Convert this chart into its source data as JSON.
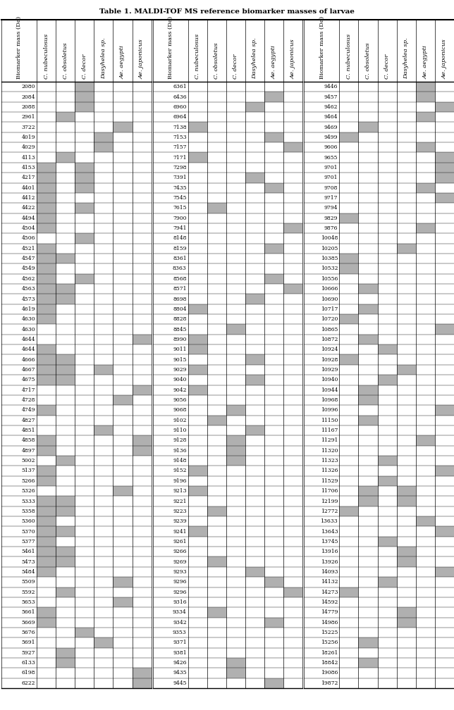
{
  "title": "Table 1. MALDI-TOF MS reference biomarker masses of larvae",
  "columns": [
    "Biomarker mass (Da)",
    "C. nubeculosus",
    "C. obsoletus",
    "C. decor",
    "Dasyhelea sp.",
    "Ae. aegypti",
    "Ae. japonicus"
  ],
  "col1_rows": [
    [
      2080,
      [
        0,
        0,
        1,
        0,
        0,
        0
      ]
    ],
    [
      2084,
      [
        0,
        0,
        1,
        0,
        0,
        0
      ]
    ],
    [
      2088,
      [
        0,
        0,
        1,
        0,
        0,
        0
      ]
    ],
    [
      2961,
      [
        0,
        1,
        0,
        0,
        0,
        0
      ]
    ],
    [
      3722,
      [
        0,
        0,
        0,
        0,
        1,
        0
      ]
    ],
    [
      4019,
      [
        0,
        0,
        0,
        1,
        0,
        0
      ]
    ],
    [
      4029,
      [
        0,
        0,
        0,
        1,
        0,
        0
      ]
    ],
    [
      4113,
      [
        0,
        1,
        0,
        0,
        0,
        0
      ]
    ],
    [
      4153,
      [
        1,
        0,
        1,
        0,
        0,
        0
      ]
    ],
    [
      4217,
      [
        1,
        0,
        1,
        0,
        0,
        0
      ]
    ],
    [
      4401,
      [
        1,
        0,
        1,
        0,
        0,
        0
      ]
    ],
    [
      4412,
      [
        1,
        0,
        0,
        0,
        0,
        0
      ]
    ],
    [
      4422,
      [
        1,
        0,
        1,
        0,
        0,
        0
      ]
    ],
    [
      4494,
      [
        1,
        0,
        0,
        0,
        0,
        0
      ]
    ],
    [
      4504,
      [
        1,
        0,
        0,
        0,
        0,
        0
      ]
    ],
    [
      4506,
      [
        0,
        0,
        1,
        0,
        0,
        0
      ]
    ],
    [
      4521,
      [
        1,
        0,
        0,
        0,
        0,
        0
      ]
    ],
    [
      4547,
      [
        1,
        1,
        0,
        0,
        0,
        0
      ]
    ],
    [
      4549,
      [
        1,
        0,
        0,
        0,
        0,
        0
      ]
    ],
    [
      4562,
      [
        1,
        0,
        1,
        0,
        0,
        0
      ]
    ],
    [
      4563,
      [
        1,
        1,
        0,
        0,
        0,
        0
      ]
    ],
    [
      4573,
      [
        1,
        1,
        0,
        0,
        0,
        0
      ]
    ],
    [
      4619,
      [
        1,
        0,
        0,
        0,
        0,
        0
      ]
    ],
    [
      4630,
      [
        1,
        0,
        0,
        0,
        0,
        0
      ]
    ],
    [
      4630,
      [
        0,
        0,
        0,
        0,
        0,
        0
      ]
    ],
    [
      4644,
      [
        0,
        0,
        0,
        0,
        0,
        1
      ]
    ],
    [
      4644,
      [
        1,
        0,
        0,
        0,
        0,
        0
      ]
    ],
    [
      4666,
      [
        1,
        1,
        0,
        0,
        0,
        0
      ]
    ],
    [
      4667,
      [
        1,
        1,
        0,
        1,
        0,
        0
      ]
    ],
    [
      4675,
      [
        1,
        1,
        0,
        0,
        0,
        0
      ]
    ],
    [
      4717,
      [
        0,
        0,
        0,
        0,
        0,
        1
      ]
    ],
    [
      4728,
      [
        0,
        0,
        0,
        0,
        1,
        0
      ]
    ],
    [
      4749,
      [
        1,
        0,
        0,
        0,
        0,
        0
      ]
    ],
    [
      4827,
      [
        0,
        0,
        0,
        0,
        0,
        0
      ]
    ],
    [
      4851,
      [
        0,
        0,
        0,
        1,
        0,
        0
      ]
    ],
    [
      4858,
      [
        1,
        0,
        0,
        0,
        0,
        1
      ]
    ],
    [
      4897,
      [
        1,
        0,
        0,
        0,
        0,
        1
      ]
    ],
    [
      5002,
      [
        0,
        1,
        0,
        0,
        0,
        0
      ]
    ],
    [
      5137,
      [
        1,
        0,
        0,
        0,
        0,
        0
      ]
    ],
    [
      5266,
      [
        1,
        0,
        0,
        0,
        0,
        0
      ]
    ],
    [
      5326,
      [
        0,
        0,
        0,
        0,
        1,
        0
      ]
    ],
    [
      5333,
      [
        1,
        1,
        0,
        0,
        0,
        0
      ]
    ],
    [
      5358,
      [
        1,
        1,
        0,
        0,
        0,
        0
      ]
    ],
    [
      5360,
      [
        1,
        0,
        0,
        0,
        0,
        0
      ]
    ],
    [
      5370,
      [
        1,
        1,
        0,
        0,
        0,
        0
      ]
    ],
    [
      5377,
      [
        1,
        0,
        0,
        0,
        0,
        0
      ]
    ],
    [
      5461,
      [
        1,
        1,
        0,
        0,
        0,
        0
      ]
    ],
    [
      5473,
      [
        1,
        1,
        0,
        0,
        0,
        0
      ]
    ],
    [
      5484,
      [
        1,
        0,
        0,
        0,
        0,
        0
      ]
    ],
    [
      5509,
      [
        0,
        0,
        0,
        0,
        1,
        0
      ]
    ],
    [
      5592,
      [
        0,
        1,
        0,
        0,
        0,
        0
      ]
    ],
    [
      5653,
      [
        0,
        0,
        0,
        0,
        1,
        0
      ]
    ],
    [
      5661,
      [
        1,
        0,
        0,
        0,
        0,
        0
      ]
    ],
    [
      5669,
      [
        1,
        0,
        0,
        0,
        0,
        0
      ]
    ],
    [
      5676,
      [
        0,
        0,
        1,
        0,
        0,
        0
      ]
    ],
    [
      5691,
      [
        0,
        0,
        0,
        1,
        0,
        0
      ]
    ],
    [
      5927,
      [
        0,
        1,
        0,
        0,
        0,
        0
      ]
    ],
    [
      6133,
      [
        0,
        1,
        0,
        0,
        0,
        0
      ]
    ],
    [
      6198,
      [
        0,
        0,
        0,
        0,
        0,
        1
      ]
    ],
    [
      6222,
      [
        0,
        0,
        0,
        0,
        0,
        1
      ]
    ]
  ],
  "col2_rows": [
    [
      6361,
      [
        0,
        0,
        0,
        0,
        0,
        0
      ]
    ],
    [
      6436,
      [
        0,
        0,
        0,
        0,
        1,
        0
      ]
    ],
    [
      6960,
      [
        0,
        0,
        0,
        1,
        0,
        0
      ]
    ],
    [
      6964,
      [
        0,
        0,
        0,
        0,
        0,
        0
      ]
    ],
    [
      7138,
      [
        1,
        0,
        0,
        0,
        0,
        0
      ]
    ],
    [
      7153,
      [
        0,
        0,
        0,
        0,
        1,
        0
      ]
    ],
    [
      7157,
      [
        0,
        0,
        0,
        0,
        0,
        1
      ]
    ],
    [
      7171,
      [
        1,
        0,
        0,
        0,
        0,
        0
      ]
    ],
    [
      7298,
      [
        0,
        0,
        0,
        0,
        0,
        0
      ]
    ],
    [
      7391,
      [
        0,
        0,
        0,
        1,
        0,
        0
      ]
    ],
    [
      7435,
      [
        0,
        0,
        0,
        0,
        1,
        0
      ]
    ],
    [
      7545,
      [
        0,
        0,
        0,
        0,
        0,
        0
      ]
    ],
    [
      7615,
      [
        0,
        1,
        0,
        0,
        0,
        0
      ]
    ],
    [
      7900,
      [
        0,
        0,
        0,
        0,
        0,
        0
      ]
    ],
    [
      7941,
      [
        0,
        0,
        0,
        0,
        0,
        1
      ]
    ],
    [
      8148,
      [
        0,
        0,
        0,
        0,
        0,
        0
      ]
    ],
    [
      8159,
      [
        0,
        0,
        0,
        0,
        1,
        0
      ]
    ],
    [
      8361,
      [
        0,
        0,
        0,
        0,
        0,
        0
      ]
    ],
    [
      8363,
      [
        0,
        0,
        0,
        0,
        0,
        0
      ]
    ],
    [
      8568,
      [
        0,
        0,
        0,
        0,
        1,
        0
      ]
    ],
    [
      8571,
      [
        0,
        0,
        0,
        0,
        0,
        1
      ]
    ],
    [
      8698,
      [
        0,
        0,
        0,
        1,
        0,
        0
      ]
    ],
    [
      8804,
      [
        1,
        0,
        0,
        0,
        0,
        0
      ]
    ],
    [
      8828,
      [
        0,
        0,
        0,
        0,
        0,
        0
      ]
    ],
    [
      8845,
      [
        0,
        0,
        1,
        0,
        0,
        0
      ]
    ],
    [
      8990,
      [
        1,
        0,
        0,
        0,
        0,
        0
      ]
    ],
    [
      9011,
      [
        1,
        0,
        0,
        0,
        0,
        0
      ]
    ],
    [
      9015,
      [
        0,
        0,
        0,
        1,
        0,
        0
      ]
    ],
    [
      9029,
      [
        1,
        0,
        0,
        0,
        0,
        0
      ]
    ],
    [
      9040,
      [
        0,
        0,
        0,
        1,
        0,
        0
      ]
    ],
    [
      9042,
      [
        1,
        0,
        0,
        0,
        0,
        0
      ]
    ],
    [
      9056,
      [
        0,
        0,
        0,
        0,
        0,
        0
      ]
    ],
    [
      9068,
      [
        0,
        0,
        1,
        0,
        0,
        0
      ]
    ],
    [
      9102,
      [
        0,
        1,
        0,
        0,
        0,
        0
      ]
    ],
    [
      9110,
      [
        0,
        0,
        0,
        1,
        0,
        0
      ]
    ],
    [
      9128,
      [
        0,
        0,
        1,
        0,
        0,
        0
      ]
    ],
    [
      9136,
      [
        0,
        0,
        1,
        0,
        0,
        0
      ]
    ],
    [
      9148,
      [
        0,
        0,
        1,
        0,
        0,
        0
      ]
    ],
    [
      9152,
      [
        1,
        0,
        0,
        0,
        0,
        0
      ]
    ],
    [
      9196,
      [
        0,
        0,
        0,
        0,
        0,
        0
      ]
    ],
    [
      9213,
      [
        1,
        0,
        0,
        0,
        0,
        0
      ]
    ],
    [
      9221,
      [
        0,
        0,
        0,
        0,
        0,
        0
      ]
    ],
    [
      9223,
      [
        0,
        1,
        0,
        0,
        0,
        0
      ]
    ],
    [
      9239,
      [
        0,
        0,
        0,
        0,
        0,
        0
      ]
    ],
    [
      9241,
      [
        1,
        0,
        0,
        0,
        0,
        0
      ]
    ],
    [
      9261,
      [
        0,
        0,
        0,
        0,
        0,
        0
      ]
    ],
    [
      9266,
      [
        0,
        0,
        0,
        0,
        0,
        0
      ]
    ],
    [
      9269,
      [
        0,
        1,
        0,
        0,
        0,
        0
      ]
    ],
    [
      9293,
      [
        0,
        0,
        0,
        1,
        0,
        0
      ]
    ],
    [
      9296,
      [
        0,
        0,
        0,
        0,
        1,
        0
      ]
    ],
    [
      9296,
      [
        0,
        0,
        0,
        0,
        0,
        1
      ]
    ],
    [
      9316,
      [
        0,
        0,
        0,
        0,
        0,
        0
      ]
    ],
    [
      9334,
      [
        0,
        1,
        0,
        0,
        0,
        0
      ]
    ],
    [
      9342,
      [
        0,
        0,
        0,
        0,
        1,
        0
      ]
    ],
    [
      9353,
      [
        0,
        0,
        0,
        0,
        0,
        0
      ]
    ],
    [
      9371,
      [
        0,
        0,
        0,
        0,
        0,
        0
      ]
    ],
    [
      9381,
      [
        0,
        0,
        0,
        0,
        0,
        0
      ]
    ],
    [
      9426,
      [
        0,
        0,
        1,
        0,
        0,
        0
      ]
    ],
    [
      9435,
      [
        0,
        0,
        1,
        0,
        0,
        0
      ]
    ],
    [
      9445,
      [
        0,
        0,
        0,
        0,
        1,
        0
      ]
    ]
  ],
  "col3_rows": [
    [
      9446,
      [
        0,
        0,
        0,
        0,
        1,
        0
      ]
    ],
    [
      9457,
      [
        0,
        0,
        0,
        0,
        1,
        0
      ]
    ],
    [
      9462,
      [
        0,
        0,
        0,
        0,
        0,
        1
      ]
    ],
    [
      9464,
      [
        0,
        0,
        0,
        0,
        1,
        0
      ]
    ],
    [
      9469,
      [
        0,
        1,
        0,
        0,
        0,
        0
      ]
    ],
    [
      9499,
      [
        1,
        0,
        0,
        0,
        0,
        0
      ]
    ],
    [
      9606,
      [
        0,
        0,
        0,
        0,
        1,
        0
      ]
    ],
    [
      9655,
      [
        0,
        0,
        0,
        0,
        0,
        1
      ]
    ],
    [
      9701,
      [
        0,
        0,
        0,
        0,
        0,
        1
      ]
    ],
    [
      9701,
      [
        0,
        0,
        0,
        0,
        0,
        1
      ]
    ],
    [
      9708,
      [
        0,
        0,
        0,
        0,
        1,
        0
      ]
    ],
    [
      9717,
      [
        0,
        0,
        0,
        0,
        0,
        1
      ]
    ],
    [
      9794,
      [
        0,
        0,
        0,
        0,
        0,
        0
      ]
    ],
    [
      9829,
      [
        1,
        0,
        0,
        0,
        0,
        0
      ]
    ],
    [
      9876,
      [
        0,
        0,
        0,
        0,
        1,
        0
      ]
    ],
    [
      10048,
      [
        0,
        0,
        0,
        0,
        0,
        0
      ]
    ],
    [
      10205,
      [
        0,
        0,
        0,
        1,
        0,
        0
      ]
    ],
    [
      10385,
      [
        1,
        0,
        0,
        0,
        0,
        0
      ]
    ],
    [
      10532,
      [
        1,
        0,
        0,
        0,
        0,
        0
      ]
    ],
    [
      10556,
      [
        0,
        0,
        0,
        0,
        0,
        0
      ]
    ],
    [
      10666,
      [
        0,
        1,
        0,
        0,
        0,
        0
      ]
    ],
    [
      10690,
      [
        0,
        0,
        0,
        0,
        0,
        0
      ]
    ],
    [
      10717,
      [
        0,
        1,
        0,
        0,
        0,
        0
      ]
    ],
    [
      10720,
      [
        1,
        0,
        0,
        0,
        0,
        0
      ]
    ],
    [
      10865,
      [
        0,
        0,
        0,
        0,
        0,
        1
      ]
    ],
    [
      10872,
      [
        0,
        1,
        0,
        0,
        0,
        0
      ]
    ],
    [
      10924,
      [
        0,
        0,
        1,
        0,
        0,
        0
      ]
    ],
    [
      10928,
      [
        1,
        0,
        0,
        0,
        0,
        0
      ]
    ],
    [
      10929,
      [
        0,
        0,
        0,
        1,
        0,
        0
      ]
    ],
    [
      10940,
      [
        0,
        0,
        1,
        0,
        0,
        0
      ]
    ],
    [
      10944,
      [
        0,
        1,
        0,
        0,
        0,
        0
      ]
    ],
    [
      10968,
      [
        0,
        1,
        0,
        0,
        0,
        0
      ]
    ],
    [
      10996,
      [
        0,
        0,
        0,
        0,
        0,
        1
      ]
    ],
    [
      11150,
      [
        0,
        1,
        0,
        0,
        0,
        0
      ]
    ],
    [
      11167,
      [
        0,
        0,
        0,
        0,
        0,
        0
      ]
    ],
    [
      11291,
      [
        0,
        0,
        0,
        0,
        1,
        0
      ]
    ],
    [
      11320,
      [
        0,
        0,
        0,
        0,
        0,
        0
      ]
    ],
    [
      11323,
      [
        0,
        0,
        1,
        0,
        0,
        0
      ]
    ],
    [
      11326,
      [
        0,
        0,
        0,
        0,
        0,
        1
      ]
    ],
    [
      11529,
      [
        0,
        0,
        1,
        0,
        0,
        0
      ]
    ],
    [
      11706,
      [
        0,
        1,
        0,
        1,
        0,
        0
      ]
    ],
    [
      12199,
      [
        0,
        1,
        0,
        1,
        0,
        0
      ]
    ],
    [
      12772,
      [
        1,
        0,
        0,
        0,
        0,
        0
      ]
    ],
    [
      13633,
      [
        0,
        0,
        0,
        0,
        1,
        0
      ]
    ],
    [
      13643,
      [
        0,
        0,
        0,
        0,
        0,
        1
      ]
    ],
    [
      13745,
      [
        0,
        0,
        1,
        0,
        0,
        0
      ]
    ],
    [
      13916,
      [
        0,
        0,
        0,
        1,
        0,
        0
      ]
    ],
    [
      13926,
      [
        0,
        0,
        0,
        1,
        0,
        0
      ]
    ],
    [
      14093,
      [
        0,
        0,
        0,
        0,
        0,
        1
      ]
    ],
    [
      14132,
      [
        0,
        0,
        1,
        0,
        0,
        0
      ]
    ],
    [
      14273,
      [
        1,
        0,
        0,
        0,
        0,
        0
      ]
    ],
    [
      14592,
      [
        0,
        0,
        0,
        0,
        0,
        0
      ]
    ],
    [
      14779,
      [
        0,
        0,
        0,
        1,
        0,
        0
      ]
    ],
    [
      14986,
      [
        0,
        0,
        0,
        1,
        0,
        0
      ]
    ],
    [
      15225,
      [
        0,
        0,
        0,
        0,
        0,
        0
      ]
    ],
    [
      15256,
      [
        0,
        1,
        0,
        0,
        0,
        0
      ]
    ],
    [
      18261,
      [
        0,
        0,
        0,
        0,
        0,
        0
      ]
    ],
    [
      18842,
      [
        0,
        1,
        0,
        0,
        0,
        0
      ]
    ],
    [
      19086,
      [
        0,
        0,
        0,
        0,
        0,
        0
      ]
    ],
    [
      19872,
      [
        0,
        0,
        0,
        0,
        0,
        0
      ]
    ]
  ],
  "gray_color": "#b0b0b0",
  "white_color": "#ffffff",
  "line_color": "#000000",
  "font_size": 5.5,
  "header_font_size": 6.0
}
